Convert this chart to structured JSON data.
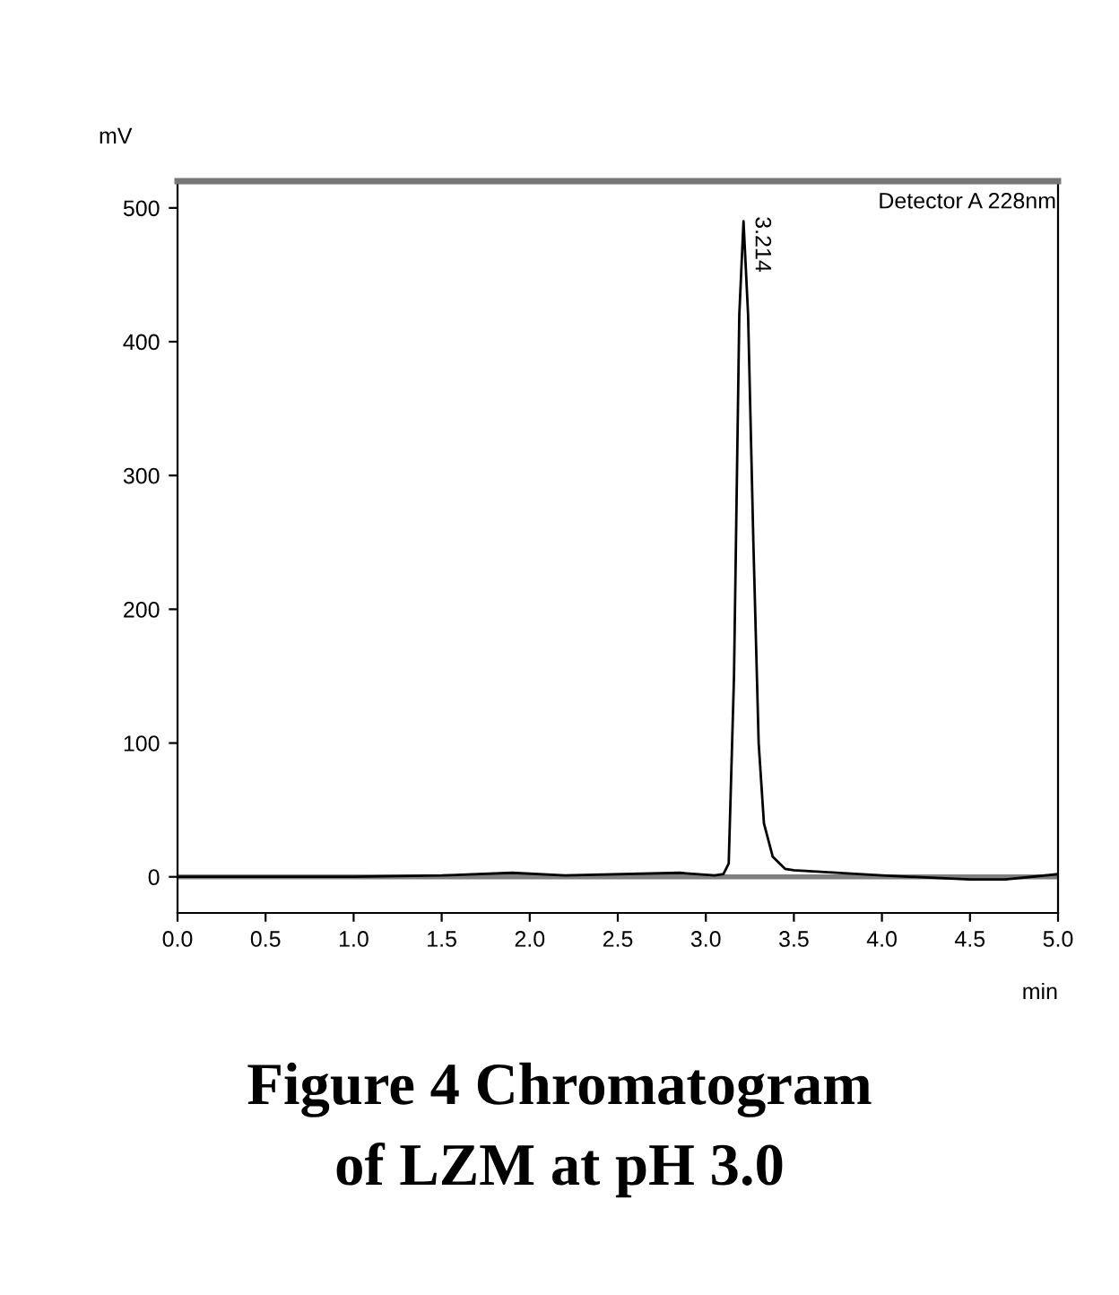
{
  "chart_data": {
    "type": "line",
    "title": "Figure 4 Chromatogram\nof LZM at pH 3.0",
    "xlabel": "min",
    "ylabel": "mV",
    "x": [
      0.0,
      0.5,
      1.0,
      1.5,
      1.9,
      2.2,
      2.85,
      3.05,
      3.1,
      3.13,
      3.16,
      3.19,
      3.214,
      3.24,
      3.27,
      3.3,
      3.33,
      3.38,
      3.45,
      3.5,
      4.0,
      4.5,
      4.7,
      5.0
    ],
    "series": [
      {
        "color": "#000000",
        "values": [
          0,
          0,
          0,
          1,
          3,
          1,
          3,
          1,
          2,
          10,
          150,
          420,
          490,
          420,
          250,
          100,
          40,
          15,
          6,
          5,
          1,
          -2,
          -2,
          2
        ]
      }
    ],
    "annotations": [
      {
        "text": "3.214",
        "x": 3.214,
        "y": 490
      },
      "Detector A 228nm"
    ],
    "ref_lines": [
      {
        "axis": "y",
        "value": 0,
        "color": "#808080"
      }
    ],
    "xlim": [
      0.0,
      5.0
    ],
    "ylim": [
      -27,
      520
    ],
    "xticks": [
      {
        "value": 0,
        "label": "0.0"
      },
      0.5,
      {
        "value": 1,
        "label": "1.0"
      },
      1.5,
      {
        "value": 2,
        "label": "2.0"
      },
      2.5,
      {
        "value": 3,
        "label": "3.0"
      },
      3.5,
      {
        "value": 4,
        "label": "4.0"
      },
      4.5,
      {
        "value": 5,
        "label": "5.0"
      }
    ],
    "yticks": [
      0,
      100,
      200,
      300,
      400,
      500
    ],
    "grid": false,
    "legend": false,
    "marker": "none",
    "line_style": "solid"
  }
}
